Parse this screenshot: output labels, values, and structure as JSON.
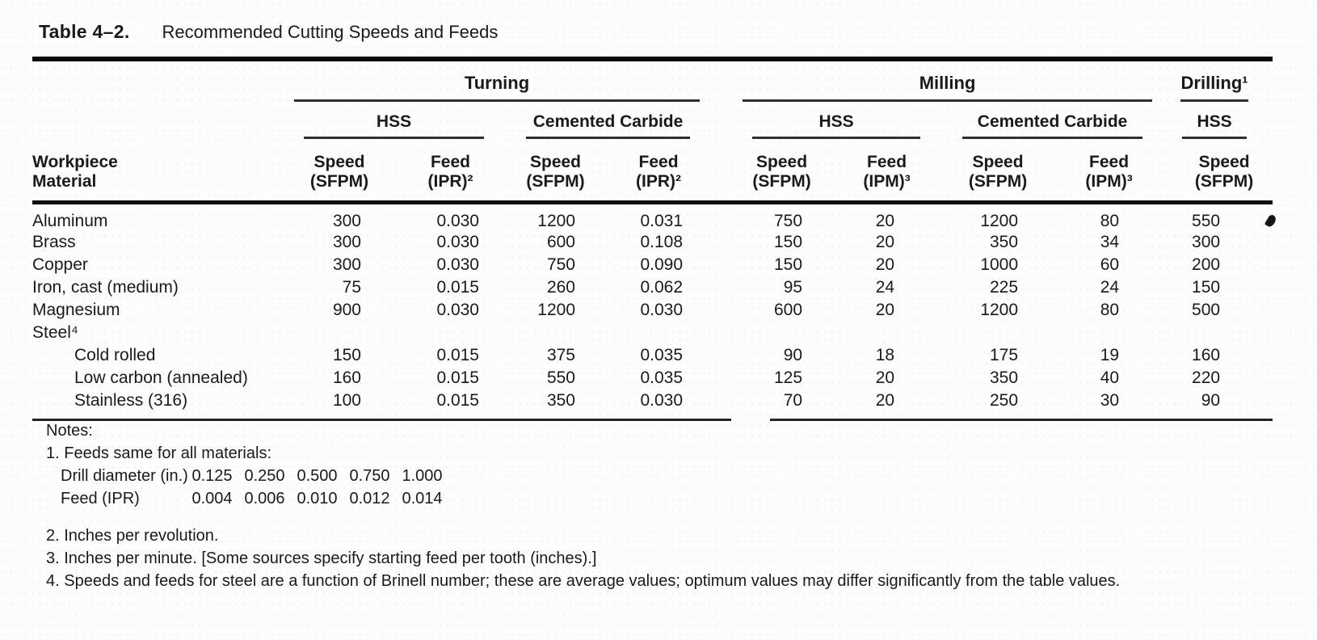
{
  "colors": {
    "ink": "#1a1a1a",
    "paper": "#fdfdfd",
    "rule": "#0c0c0c"
  },
  "title": {
    "label": "Table 4–2.",
    "text": "Recommended Cutting Speeds and Feeds"
  },
  "table": {
    "group_turning": "Turning",
    "group_milling": "Milling",
    "group_drilling": "Drilling¹",
    "sub_turning_hss": "HSS",
    "sub_turning_cc": "Cemented Carbide",
    "sub_milling_hss": "HSS",
    "sub_milling_cc": "Cemented Carbide",
    "sub_drilling_hss": "HSS",
    "material_header": "Workpiece\nMaterial",
    "col_headers": [
      "Speed\n(SFPM)",
      "Feed\n(IPR)²",
      "Speed\n(SFPM)",
      "Feed\n(IPR)²",
      "Speed\n(SFPM)",
      "Feed\n(IPM)³",
      "Speed\n(SFPM)",
      "Feed\n(IPM)³",
      "Speed\n(SFPM)"
    ],
    "rows": [
      {
        "material": "Aluminum",
        "indent": false,
        "values": [
          "300",
          "0.030",
          "1200",
          "0.031",
          "750",
          "20",
          "1200",
          "80",
          "550"
        ]
      },
      {
        "material": "Brass",
        "indent": false,
        "values": [
          "300",
          "0.030",
          "600",
          "0.108",
          "150",
          "20",
          "350",
          "34",
          "300"
        ]
      },
      {
        "material": "Copper",
        "indent": false,
        "values": [
          "300",
          "0.030",
          "750",
          "0.090",
          "150",
          "20",
          "1000",
          "60",
          "200"
        ]
      },
      {
        "material": "Iron, cast (medium)",
        "indent": false,
        "values": [
          "75",
          "0.015",
          "260",
          "0.062",
          "95",
          "24",
          "225",
          "24",
          "150"
        ]
      },
      {
        "material": "Magnesium",
        "indent": false,
        "values": [
          "900",
          "0.030",
          "1200",
          "0.030",
          "600",
          "20",
          "1200",
          "80",
          "500"
        ]
      },
      {
        "material": "Steel⁴",
        "indent": false,
        "values": [
          "",
          "",
          "",
          "",
          "",
          "",
          "",
          "",
          ""
        ]
      },
      {
        "material": "Cold rolled",
        "indent": true,
        "values": [
          "150",
          "0.015",
          "375",
          "0.035",
          "90",
          "18",
          "175",
          "19",
          "160"
        ]
      },
      {
        "material": "Low carbon (annealed)",
        "indent": true,
        "values": [
          "160",
          "0.015",
          "550",
          "0.035",
          "125",
          "20",
          "350",
          "40",
          "220"
        ]
      },
      {
        "material": "Stainless (316)",
        "indent": true,
        "values": [
          "100",
          "0.015",
          "350",
          "0.030",
          "70",
          "20",
          "250",
          "30",
          "90"
        ]
      }
    ]
  },
  "notes": {
    "heading": "Notes:",
    "line1": "1. Feeds same for all materials:",
    "drill_rows": [
      {
        "label": "Drill diameter (in.)",
        "values": [
          "0.125",
          "0.250",
          "0.500",
          "0.750",
          "1.000"
        ]
      },
      {
        "label": "Feed (IPR)",
        "values": [
          "0.004",
          "0.006",
          "0.010",
          "0.012",
          "0.014"
        ]
      }
    ],
    "line2": "2. Inches per revolution.",
    "line3": "3. Inches per minute. [Some sources specify starting feed per tooth (inches).]",
    "line4": "4. Speeds and feeds for steel are a function of Brinell number; these are average values; optimum values may differ significantly from the table values."
  }
}
